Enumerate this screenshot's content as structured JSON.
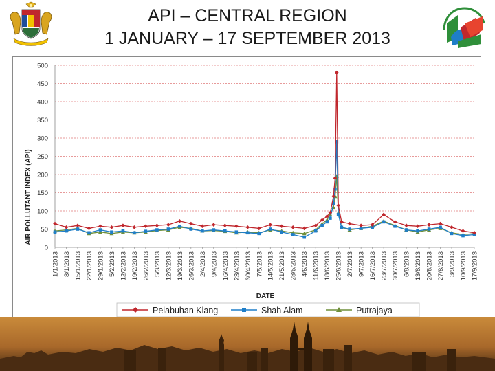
{
  "header": {
    "title_line1": "API – CENTRAL REGION",
    "title_line2": "1 JANUARY – 17 SEPTEMBER 2013",
    "left_logo": "malaysia-coat-of-arms-icon",
    "right_logo": "jabatan-alam-sekitar-logo"
  },
  "colors": {
    "pelabuhan_klang": "#c0272d",
    "shah_alam": "#1f7ec8",
    "putrajaya": "#6f8f3a",
    "gridline": "#e07a7a"
  },
  "chart_data": {
    "type": "line",
    "xlabel": "DATE",
    "ylabel": "AIR POLLUTANT INDEX (API)",
    "ylim": [
      0,
      500
    ],
    "yticks": [
      0,
      50,
      100,
      150,
      200,
      250,
      300,
      350,
      400,
      450,
      500
    ],
    "grid": true,
    "legend_position": "bottom",
    "x_tick_labels": [
      "1/1/2013",
      "8/1/2013",
      "15/1/2013",
      "22/1/2013",
      "29/1/2013",
      "5/2/2013",
      "12/2/2013",
      "19/2/2013",
      "26/2/2013",
      "5/3/2013",
      "12/3/2013",
      "19/3/2013",
      "26/3/2013",
      "2/4/2013",
      "9/4/2013",
      "16/4/2013",
      "23/4/2013",
      "30/4/2013",
      "7/5/2013",
      "14/5/2013",
      "21/5/2013",
      "28/5/2013",
      "4/6/2013",
      "11/6/2013",
      "18/6/2013",
      "25/6/2013",
      "2/7/2013",
      "9/7/2013",
      "16/7/2013",
      "23/7/2013",
      "30/7/2013",
      "6/8/2013",
      "13/8/2013",
      "20/8/2013",
      "27/8/2013",
      "3/9/2013",
      "10/9/2013",
      "17/9/2013"
    ],
    "x_dates": [
      "1/1/2013",
      "8/1/2013",
      "15/1/2013",
      "22/1/2013",
      "29/1/2013",
      "5/2/2013",
      "12/2/2013",
      "19/2/2013",
      "26/2/2013",
      "5/3/2013",
      "12/3/2013",
      "19/3/2013",
      "26/3/2013",
      "2/4/2013",
      "9/4/2013",
      "16/4/2013",
      "23/4/2013",
      "30/4/2013",
      "7/5/2013",
      "14/5/2013",
      "21/5/2013",
      "28/5/2013",
      "4/6/2013",
      "11/6/2013",
      "15/6/2013",
      "18/6/2013",
      "20/6/2013",
      "22/6/2013",
      "23/6/2013",
      "24/6/2013",
      "25/6/2013",
      "27/6/2013",
      "2/7/2013",
      "9/7/2013",
      "16/7/2013",
      "23/7/2013",
      "30/7/2013",
      "6/8/2013",
      "13/8/2013",
      "20/8/2013",
      "27/8/2013",
      "3/9/2013",
      "10/9/2013",
      "17/9/2013"
    ],
    "series": [
      {
        "name": "Pelabuhan Klang",
        "color": "#c0272d",
        "marker": "diamond",
        "values": [
          65,
          55,
          60,
          52,
          58,
          55,
          60,
          55,
          58,
          60,
          62,
          72,
          65,
          58,
          62,
          60,
          58,
          55,
          52,
          62,
          58,
          55,
          52,
          60,
          75,
          85,
          95,
          140,
          190,
          480,
          115,
          70,
          65,
          60,
          62,
          90,
          70,
          60,
          58,
          62,
          65,
          55,
          45,
          40
        ]
      },
      {
        "name": "Shah Alam",
        "color": "#1f7ec8",
        "marker": "square",
        "values": [
          42,
          45,
          50,
          40,
          48,
          42,
          45,
          40,
          44,
          48,
          50,
          58,
          50,
          45,
          48,
          45,
          42,
          40,
          38,
          50,
          42,
          35,
          28,
          45,
          60,
          70,
          80,
          120,
          160,
          290,
          90,
          55,
          50,
          52,
          55,
          70,
          58,
          48,
          45,
          50,
          55,
          38,
          32,
          35
        ]
      },
      {
        "name": "Putrajaya",
        "color": "#6f8f3a",
        "marker": "triangle",
        "values": [
          45,
          48,
          52,
          38,
          42,
          38,
          42,
          40,
          42,
          46,
          48,
          55,
          52,
          45,
          46,
          44,
          40,
          42,
          40,
          48,
          45,
          40,
          38,
          48,
          65,
          75,
          90,
          110,
          140,
          195,
          95,
          55,
          48,
          52,
          58,
          72,
          60,
          48,
          42,
          48,
          52,
          40,
          35,
          38
        ]
      }
    ]
  }
}
